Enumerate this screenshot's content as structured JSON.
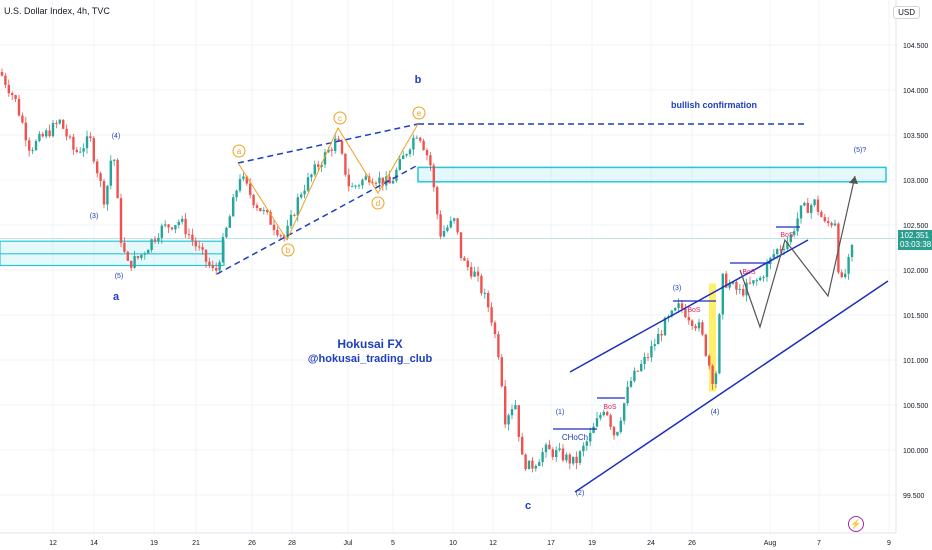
{
  "header": {
    "symbol_line": "U.S. Dollar Index, 4h, TVC",
    "currency": "USD"
  },
  "last_price": {
    "value": "102.351",
    "countdown": "03:03:38"
  },
  "colors": {
    "up": "#26a69a",
    "down": "#ef5350",
    "wedge": "#1e3fbf",
    "zone": "#26c6da",
    "channel": "#1a2fc0",
    "wave_orange": "#f0a020",
    "bos": "#e91e63",
    "zigzag": "#555555"
  },
  "icons": {
    "alert": "lightning-icon"
  },
  "chart_data": {
    "type": "candlestick",
    "title": "U.S. Dollar Index, 4h, TVC",
    "y_range": [
      99.15,
      104.75
    ],
    "y_ticks": [
      "104.500",
      "104.000",
      "103.500",
      "103.000",
      "102.500",
      "102.000",
      "101.500",
      "101.000",
      "100.500",
      "100.000",
      "99.500"
    ],
    "x_ticks": [
      "12",
      "14",
      "19",
      "21",
      "26",
      "28",
      "Jul",
      "5",
      "10",
      "12",
      "17",
      "19",
      "24",
      "26",
      "Aug",
      "7",
      "9"
    ],
    "price_path": [
      [
        0,
        104.2
      ],
      [
        15,
        103.9
      ],
      [
        30,
        103.35
      ],
      [
        45,
        103.5
      ],
      [
        60,
        103.65
      ],
      [
        75,
        103.3
      ],
      [
        90,
        103.45
      ],
      [
        105,
        102.75
      ],
      [
        113,
        103.4
      ],
      [
        120,
        102.4
      ],
      [
        127,
        102.05
      ],
      [
        140,
        102.15
      ],
      [
        160,
        102.45
      ],
      [
        180,
        102.55
      ],
      [
        200,
        102.2
      ],
      [
        215,
        101.95
      ],
      [
        230,
        102.6
      ],
      [
        240,
        103.05
      ],
      [
        255,
        102.75
      ],
      [
        270,
        102.55
      ],
      [
        285,
        102.35
      ],
      [
        300,
        102.85
      ],
      [
        320,
        103.2
      ],
      [
        337,
        103.45
      ],
      [
        350,
        102.9
      ],
      [
        370,
        103.05
      ],
      [
        390,
        102.95
      ],
      [
        410,
        103.4
      ],
      [
        418,
        103.55
      ],
      [
        430,
        103.2
      ],
      [
        440,
        102.4
      ],
      [
        455,
        102.55
      ],
      [
        462,
        102.1
      ],
      [
        475,
        101.95
      ],
      [
        490,
        101.55
      ],
      [
        500,
        101.0
      ],
      [
        505,
        100.35
      ],
      [
        515,
        100.55
      ],
      [
        522,
        99.9
      ],
      [
        530,
        99.8
      ],
      [
        545,
        100.0
      ],
      [
        560,
        99.95
      ],
      [
        575,
        99.85
      ],
      [
        590,
        100.15
      ],
      [
        605,
        100.5
      ],
      [
        615,
        100.15
      ],
      [
        630,
        100.75
      ],
      [
        648,
        101.05
      ],
      [
        665,
        101.4
      ],
      [
        680,
        101.6
      ],
      [
        700,
        101.35
      ],
      [
        715,
        100.7
      ],
      [
        722,
        101.9
      ],
      [
        740,
        101.75
      ],
      [
        760,
        101.9
      ],
      [
        775,
        102.2
      ],
      [
        790,
        102.35
      ],
      [
        800,
        102.65
      ],
      [
        815,
        102.75
      ],
      [
        825,
        102.5
      ],
      [
        835,
        102.55
      ],
      [
        840,
        101.8
      ],
      [
        848,
        102.05
      ],
      [
        855,
        102.35
      ]
    ],
    "annotations": {
      "watermark": [
        "Hokusai FX",
        "@hokusai_trading_club"
      ],
      "bullish_confirmation": "bullish confirmation",
      "wave_big": [
        "a",
        "b",
        "c"
      ],
      "wave_small_left": [
        "(3)",
        "(4)",
        "(5)"
      ],
      "abcde": [
        "a",
        "b",
        "c",
        "d",
        "e"
      ],
      "impulse_right": [
        "(1)",
        "(2)",
        "(3)",
        "(4)",
        "(5)?"
      ],
      "choch": "CHoCh",
      "bos": [
        "BoS",
        "BoS",
        "BoS",
        "BoS"
      ]
    }
  }
}
